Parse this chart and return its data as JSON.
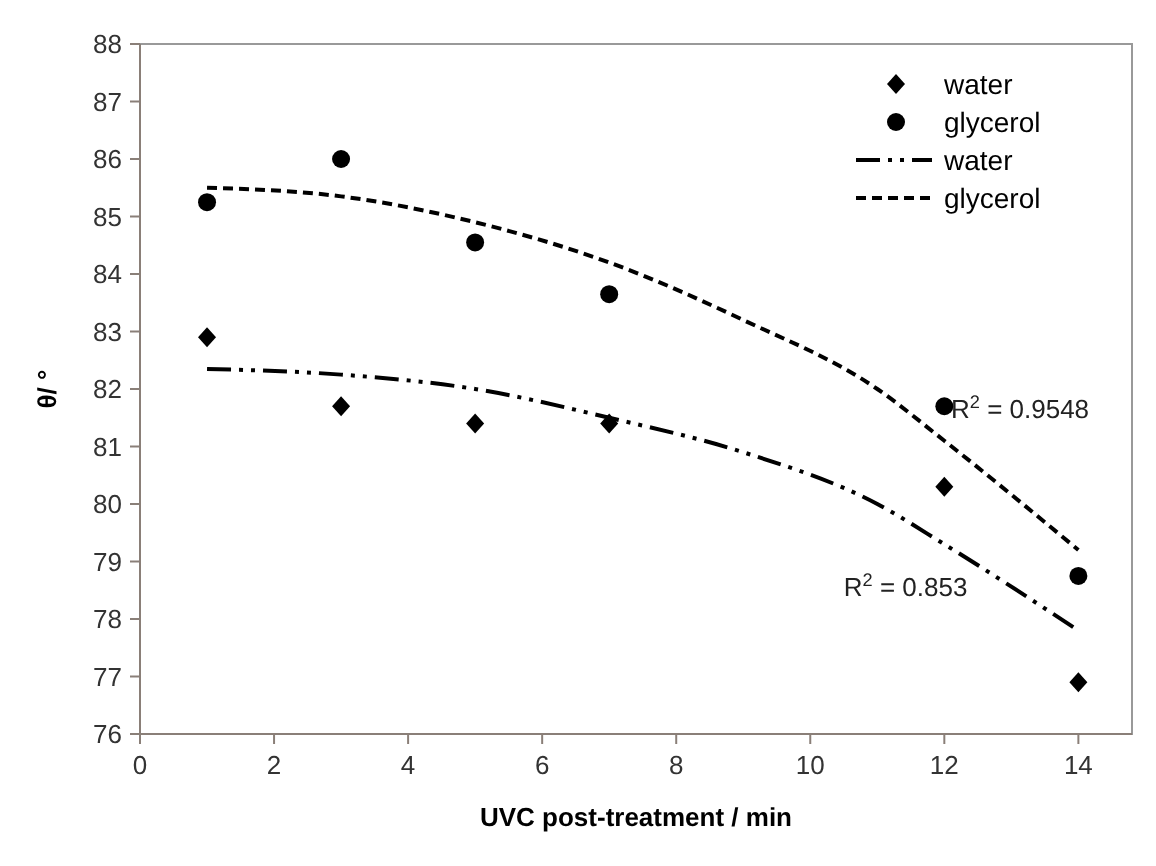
{
  "chart_data": {
    "type": "scatter",
    "xlabel": "UVC post-treatment / min",
    "ylabel": "θ/ °",
    "xlim": [
      0,
      14.8
    ],
    "xticks": [
      0,
      2,
      4,
      6,
      8,
      10,
      12,
      14
    ],
    "ylim": [
      76,
      88
    ],
    "yticks": [
      76,
      77,
      78,
      79,
      80,
      81,
      82,
      83,
      84,
      85,
      86,
      87,
      88
    ],
    "grid": false,
    "legend": "top right",
    "series": [
      {
        "name": "water",
        "color": "#000000",
        "marker": "diamond",
        "x": [
          1,
          3,
          5,
          7,
          12,
          14
        ],
        "values": [
          82.9,
          81.7,
          81.4,
          81.4,
          80.3,
          76.9
        ]
      },
      {
        "name": "glycerol",
        "color": "#000000",
        "marker": "circle",
        "x": [
          1,
          3,
          5,
          7,
          12,
          14
        ],
        "values": [
          85.25,
          86.0,
          84.55,
          83.65,
          81.7,
          78.75
        ]
      },
      {
        "name": "water",
        "type": "line",
        "color": "#000000",
        "line_style": "dashdot",
        "x": [
          1,
          3,
          5,
          7,
          9,
          11,
          12,
          14
        ],
        "values": [
          82.35,
          82.25,
          82.0,
          81.5,
          80.9,
          80.0,
          79.3,
          77.8
        ]
      },
      {
        "name": "glycerol",
        "type": "line",
        "color": "#000000",
        "line_style": "dashed",
        "x": [
          1,
          3,
          5,
          7,
          9,
          11,
          12,
          14
        ],
        "values": [
          85.5,
          85.35,
          84.9,
          84.2,
          83.2,
          82.0,
          81.1,
          79.2
        ]
      }
    ],
    "annotations": [
      "R$^{2}$ = 0.9548",
      "R$^{2}$ = 0.853"
    ]
  }
}
